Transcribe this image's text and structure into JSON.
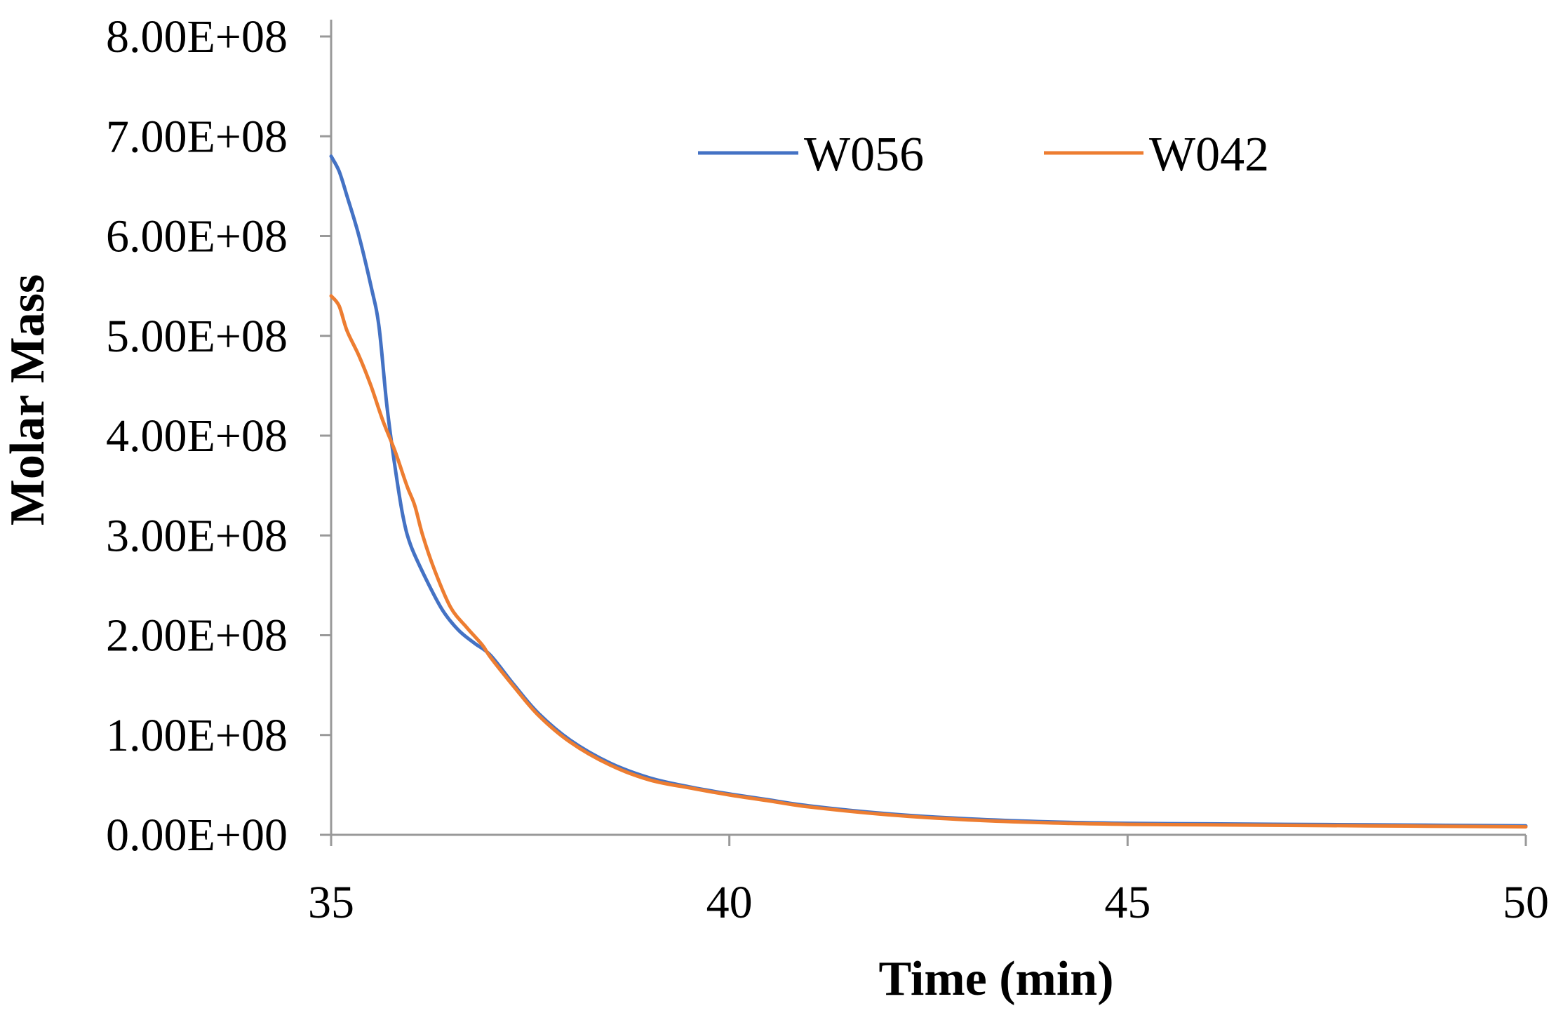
{
  "chart_data": {
    "type": "line",
    "xlabel": "Time (min)",
    "ylabel": "Molar Mass",
    "xlim": [
      35,
      50
    ],
    "ylim": [
      0,
      800000000
    ],
    "x_ticks": [
      35,
      40,
      45,
      50
    ],
    "x_tick_labels": [
      "35",
      "40",
      "45",
      "50"
    ],
    "y_ticks": [
      0,
      100000000,
      200000000,
      300000000,
      400000000,
      500000000,
      600000000,
      700000000,
      800000000
    ],
    "y_tick_labels": [
      "0.00E+00",
      "1.00E+08",
      "2.00E+08",
      "3.00E+08",
      "4.00E+08",
      "5.00E+08",
      "6.00E+08",
      "7.00E+08",
      "8.00E+08"
    ],
    "grid": false,
    "legend_position": "top-right",
    "series": [
      {
        "name": "W056",
        "color": "#4472C4",
        "points": [
          [
            35.0,
            680000000
          ],
          [
            35.1,
            665000000
          ],
          [
            35.2,
            640000000
          ],
          [
            35.35,
            600000000
          ],
          [
            35.5,
            550000000
          ],
          [
            35.6,
            510000000
          ],
          [
            35.7,
            430000000
          ],
          [
            35.8,
            370000000
          ],
          [
            35.9,
            320000000
          ],
          [
            36.0,
            290000000
          ],
          [
            36.2,
            255000000
          ],
          [
            36.4,
            225000000
          ],
          [
            36.6,
            205000000
          ],
          [
            36.8,
            192000000
          ],
          [
            37.0,
            180000000
          ],
          [
            37.3,
            150000000
          ],
          [
            37.6,
            122000000
          ],
          [
            38.0,
            95000000
          ],
          [
            38.5,
            72000000
          ],
          [
            39.0,
            57000000
          ],
          [
            39.5,
            48000000
          ],
          [
            40.0,
            41000000
          ],
          [
            40.5,
            35000000
          ],
          [
            41.0,
            29000000
          ],
          [
            42.0,
            21000000
          ],
          [
            43.0,
            16000000
          ],
          [
            44.0,
            13000000
          ],
          [
            45.0,
            11500000
          ],
          [
            46.0,
            11000000
          ],
          [
            47.0,
            10500000
          ],
          [
            48.0,
            10000000
          ],
          [
            49.0,
            9500000
          ],
          [
            50.0,
            9000000
          ]
        ]
      },
      {
        "name": "W042",
        "color": "#ED7D31",
        "points": [
          [
            35.0,
            540000000
          ],
          [
            35.1,
            530000000
          ],
          [
            35.2,
            505000000
          ],
          [
            35.35,
            480000000
          ],
          [
            35.5,
            450000000
          ],
          [
            35.65,
            415000000
          ],
          [
            35.8,
            385000000
          ],
          [
            35.95,
            350000000
          ],
          [
            36.05,
            330000000
          ],
          [
            36.15,
            300000000
          ],
          [
            36.3,
            265000000
          ],
          [
            36.5,
            228000000
          ],
          [
            36.7,
            208000000
          ],
          [
            36.9,
            190000000
          ],
          [
            37.0,
            178000000
          ],
          [
            37.3,
            148000000
          ],
          [
            37.6,
            120000000
          ],
          [
            38.0,
            93000000
          ],
          [
            38.5,
            70000000
          ],
          [
            39.0,
            55000000
          ],
          [
            39.5,
            47000000
          ],
          [
            40.0,
            40000000
          ],
          [
            40.5,
            34000000
          ],
          [
            41.0,
            28000000
          ],
          [
            42.0,
            20000000
          ],
          [
            43.0,
            15000000
          ],
          [
            44.0,
            12000000
          ],
          [
            45.0,
            10500000
          ],
          [
            46.0,
            10000000
          ],
          [
            47.0,
            9500000
          ],
          [
            48.0,
            9000000
          ],
          [
            49.0,
            8500000
          ],
          [
            50.0,
            8000000
          ]
        ]
      }
    ]
  }
}
